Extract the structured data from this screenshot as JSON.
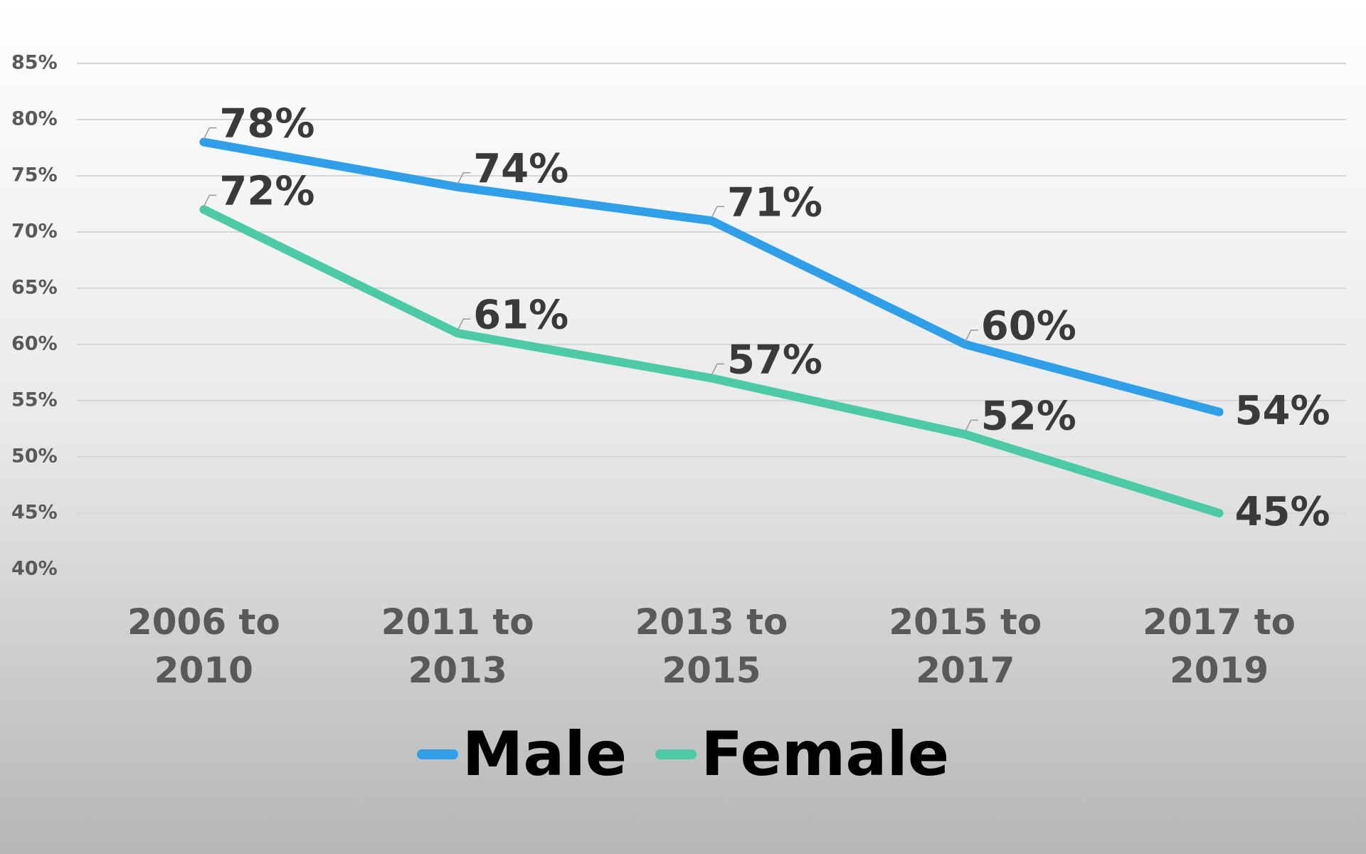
{
  "chart_data": {
    "type": "line",
    "categories": [
      "2006 to 2010",
      "2011 to 2013",
      "2013 to 2015",
      "2015 to 2017",
      "2017 to 2019"
    ],
    "series": [
      {
        "name": "Male",
        "color": "#2e9fe8",
        "values": [
          78,
          74,
          71,
          60,
          54
        ],
        "value_labels": [
          "78%",
          "74%",
          "71%",
          "60%",
          "54%"
        ]
      },
      {
        "name": "Female",
        "color": "#4ccaa6",
        "values": [
          72,
          61,
          57,
          52,
          45
        ],
        "value_labels": [
          "72%",
          "61%",
          "57%",
          "52%",
          "45%"
        ]
      }
    ],
    "ylim": [
      40,
      85
    ],
    "yticks": [
      {
        "value": 40,
        "label": "40%"
      },
      {
        "value": 45,
        "label": "45%"
      },
      {
        "value": 50,
        "label": "50%"
      },
      {
        "value": 55,
        "label": "55%"
      },
      {
        "value": 60,
        "label": "60%"
      },
      {
        "value": 65,
        "label": "65%"
      },
      {
        "value": 70,
        "label": "70%"
      },
      {
        "value": 75,
        "label": "75%"
      },
      {
        "value": 80,
        "label": "80%"
      },
      {
        "value": 85,
        "label": "85%"
      }
    ],
    "grid": true,
    "legend": "bottom"
  }
}
